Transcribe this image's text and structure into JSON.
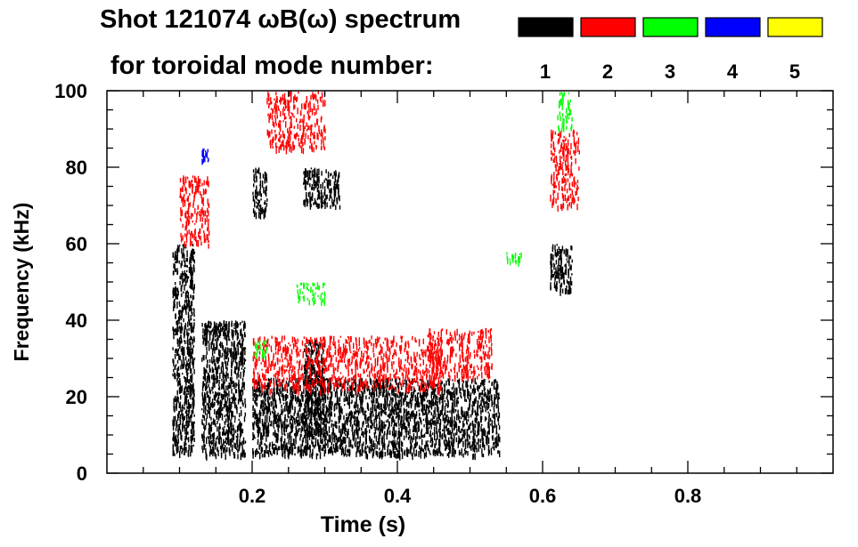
{
  "chart_data": {
    "type": "heatmap",
    "title_line1": "Shot 121074 ωB(ω) spectrum",
    "title_line2": "for toroidal mode number:",
    "xlabel": "Time (s)",
    "ylabel": "Frequency (kHz)",
    "xlim": [
      0.0,
      1.0
    ],
    "ylim": [
      0,
      100
    ],
    "x_ticks": [
      0.2,
      0.4,
      0.6,
      0.8
    ],
    "x_tick_labels": [
      "0.2",
      "0.4",
      "0.6",
      "0.8"
    ],
    "y_ticks": [
      0,
      20,
      40,
      60,
      80,
      100
    ],
    "y_tick_labels": [
      "0",
      "20",
      "40",
      "60",
      "80",
      "100"
    ],
    "legend": {
      "placement": "top",
      "entries": [
        {
          "label": "1",
          "color": "#000000"
        },
        {
          "label": "2",
          "color": "#ff0000"
        },
        {
          "label": "3",
          "color": "#00ff00"
        },
        {
          "label": "4",
          "color": "#0000ff"
        },
        {
          "label": "5",
          "color": "#ffff00"
        }
      ]
    },
    "regions": [
      {
        "mode": 1,
        "t": [
          0.09,
          0.12
        ],
        "f": [
          5,
          60
        ]
      },
      {
        "mode": 1,
        "t": [
          0.13,
          0.19
        ],
        "f": [
          5,
          40
        ]
      },
      {
        "mode": 1,
        "t": [
          0.2,
          0.54
        ],
        "f": [
          5,
          25
        ]
      },
      {
        "mode": 1,
        "t": [
          0.27,
          0.3
        ],
        "f": [
          10,
          35
        ]
      },
      {
        "mode": 1,
        "t": [
          0.2,
          0.22
        ],
        "f": [
          68,
          80
        ]
      },
      {
        "mode": 1,
        "t": [
          0.27,
          0.32
        ],
        "f": [
          70,
          80
        ]
      },
      {
        "mode": 1,
        "t": [
          0.61,
          0.64
        ],
        "f": [
          48,
          60
        ]
      },
      {
        "mode": 2,
        "t": [
          0.1,
          0.14
        ],
        "f": [
          60,
          78
        ]
      },
      {
        "mode": 2,
        "t": [
          0.2,
          0.46
        ],
        "f": [
          22,
          36
        ]
      },
      {
        "mode": 2,
        "t": [
          0.44,
          0.53
        ],
        "f": [
          25,
          38
        ]
      },
      {
        "mode": 2,
        "t": [
          0.22,
          0.3
        ],
        "f": [
          85,
          100
        ]
      },
      {
        "mode": 2,
        "t": [
          0.61,
          0.65
        ],
        "f": [
          70,
          90
        ]
      },
      {
        "mode": 3,
        "t": [
          0.2,
          0.22
        ],
        "f": [
          30,
          35
        ]
      },
      {
        "mode": 3,
        "t": [
          0.26,
          0.3
        ],
        "f": [
          45,
          50
        ]
      },
      {
        "mode": 3,
        "t": [
          0.55,
          0.57
        ],
        "f": [
          55,
          58
        ]
      },
      {
        "mode": 3,
        "t": [
          0.62,
          0.64
        ],
        "f": [
          90,
          100
        ]
      },
      {
        "mode": 4,
        "t": [
          0.13,
          0.14
        ],
        "f": [
          82,
          85
        ]
      }
    ]
  }
}
